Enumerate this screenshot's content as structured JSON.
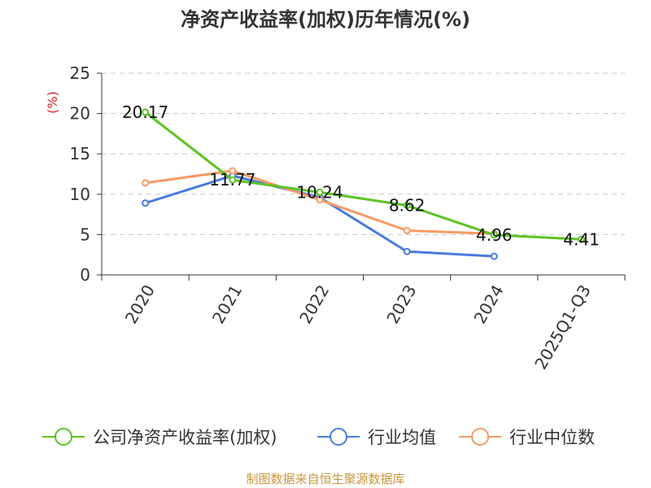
{
  "chart_data": {
    "type": "line",
    "title": "净资产收益率(加权)历年情况(%)",
    "ylabel": "(%)",
    "xlabel": "",
    "categories": [
      "2020",
      "2021",
      "2022",
      "2023",
      "2024",
      "2025Q1-Q3"
    ],
    "ylim": [
      0,
      25
    ],
    "yticks": [
      0,
      5,
      10,
      15,
      20,
      25
    ],
    "grid": true,
    "series": [
      {
        "name": "公司净资产收益率(加权)",
        "color": "#5cc323",
        "values": [
          20.17,
          11.77,
          10.24,
          8.62,
          4.96,
          4.41
        ],
        "labels": [
          "20.17",
          "11.77",
          "10.24",
          "8.62",
          "4.96",
          "4.41"
        ]
      },
      {
        "name": "行业均值",
        "color": "#4a7bdc",
        "values": [
          8.9,
          12.3,
          9.6,
          2.9,
          2.3,
          null
        ]
      },
      {
        "name": "行业中位数",
        "color": "#f79a64",
        "values": [
          11.4,
          12.9,
          9.3,
          5.5,
          5.1,
          null
        ]
      }
    ],
    "legend_position": "bottom"
  },
  "source": "制图数据来自恒生聚源数据库"
}
